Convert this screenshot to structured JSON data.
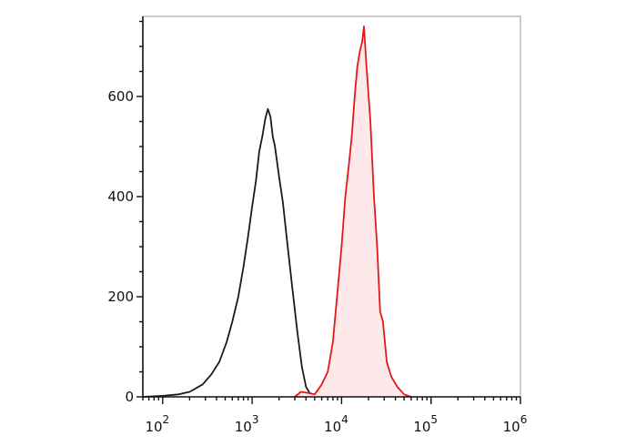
{
  "chart_data": {
    "type": "area",
    "title": "",
    "xlabel": "",
    "ylabel": "",
    "x_scale": "log",
    "xlim": [
      60,
      1000000
    ],
    "ylim": [
      0,
      760
    ],
    "grid": false,
    "legend": "none",
    "y_ticks": [
      {
        "value": 0,
        "label": "0"
      },
      {
        "value": 200,
        "label": "200"
      },
      {
        "value": 400,
        "label": "400"
      },
      {
        "value": 600,
        "label": "600"
      }
    ],
    "x_ticks": [
      {
        "value": 100,
        "base": "10",
        "exp": "2"
      },
      {
        "value": 1000,
        "base": "10",
        "exp": "3"
      },
      {
        "value": 10000,
        "base": "10",
        "exp": "4"
      },
      {
        "value": 100000,
        "base": "10",
        "exp": "5"
      },
      {
        "value": 1000000,
        "base": "10",
        "exp": "6"
      }
    ],
    "series": [
      {
        "color": "#1a1a1a",
        "filled": false,
        "points": [
          [
            60,
            0
          ],
          [
            100,
            2
          ],
          [
            150,
            5
          ],
          [
            200,
            10
          ],
          [
            280,
            25
          ],
          [
            350,
            45
          ],
          [
            430,
            70
          ],
          [
            520,
            110
          ],
          [
            600,
            150
          ],
          [
            700,
            200
          ],
          [
            800,
            260
          ],
          [
            900,
            320
          ],
          [
            1000,
            380
          ],
          [
            1100,
            430
          ],
          [
            1200,
            490
          ],
          [
            1300,
            520
          ],
          [
            1400,
            555
          ],
          [
            1500,
            575
          ],
          [
            1600,
            560
          ],
          [
            1700,
            520
          ],
          [
            1800,
            500
          ],
          [
            2000,
            440
          ],
          [
            2200,
            390
          ],
          [
            2500,
            300
          ],
          [
            2800,
            220
          ],
          [
            3200,
            130
          ],
          [
            3600,
            60
          ],
          [
            4000,
            20
          ],
          [
            4500,
            5
          ],
          [
            5000,
            0
          ]
        ]
      },
      {
        "color": "#e31a1a",
        "fill": "#fde8ea",
        "filled": true,
        "points": [
          [
            3000,
            0
          ],
          [
            3500,
            10
          ],
          [
            4200,
            8
          ],
          [
            5000,
            5
          ],
          [
            6000,
            25
          ],
          [
            7000,
            50
          ],
          [
            8000,
            110
          ],
          [
            9000,
            210
          ],
          [
            10000,
            300
          ],
          [
            11000,
            400
          ],
          [
            12000,
            460
          ],
          [
            13000,
            520
          ],
          [
            14000,
            600
          ],
          [
            15000,
            660
          ],
          [
            16000,
            690
          ],
          [
            17000,
            710
          ],
          [
            17800,
            740
          ],
          [
            19000,
            660
          ],
          [
            21000,
            550
          ],
          [
            23000,
            400
          ],
          [
            25000,
            300
          ],
          [
            27000,
            170
          ],
          [
            29000,
            150
          ],
          [
            32000,
            70
          ],
          [
            36000,
            40
          ],
          [
            42000,
            20
          ],
          [
            50000,
            5
          ],
          [
            60000,
            0
          ]
        ]
      }
    ]
  }
}
